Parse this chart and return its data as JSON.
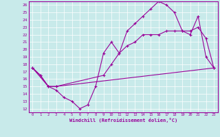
{
  "xlabel": "Windchill (Refroidissement éolien,°C)",
  "xlim": [
    -0.5,
    23.5
  ],
  "ylim": [
    11.5,
    26.5
  ],
  "xticks": [
    0,
    1,
    2,
    3,
    4,
    5,
    6,
    7,
    8,
    9,
    10,
    11,
    12,
    13,
    14,
    15,
    16,
    17,
    18,
    19,
    20,
    21,
    22,
    23
  ],
  "yticks": [
    12,
    13,
    14,
    15,
    16,
    17,
    18,
    19,
    20,
    21,
    22,
    23,
    24,
    25,
    26
  ],
  "bg_color": "#c8eaea",
  "line_color": "#990099",
  "line1_x": [
    0,
    1,
    2,
    3,
    4,
    5,
    6,
    7,
    8,
    9,
    10,
    11,
    12,
    13,
    14,
    15,
    16,
    17,
    18,
    19,
    20,
    21,
    22,
    23
  ],
  "line1_y": [
    17.5,
    16.5,
    15.0,
    14.5,
    13.5,
    13.0,
    12.0,
    12.5,
    15.0,
    19.5,
    21.0,
    19.5,
    22.5,
    23.5,
    24.5,
    25.5,
    26.5,
    26.0,
    25.0,
    22.5,
    22.0,
    24.5,
    19.0,
    17.5
  ],
  "line2_x": [
    0,
    1,
    2,
    3,
    23
  ],
  "line2_y": [
    17.5,
    16.5,
    15.0,
    15.0,
    17.5
  ],
  "line3_x": [
    0,
    2,
    3,
    9,
    10,
    11,
    12,
    13,
    14,
    15,
    16,
    17,
    18,
    19,
    20,
    21,
    22,
    23
  ],
  "line3_y": [
    17.5,
    15.0,
    15.0,
    16.5,
    18.0,
    19.5,
    20.5,
    21.0,
    22.0,
    22.0,
    22.0,
    22.5,
    22.5,
    22.5,
    22.5,
    23.0,
    21.5,
    17.5
  ]
}
